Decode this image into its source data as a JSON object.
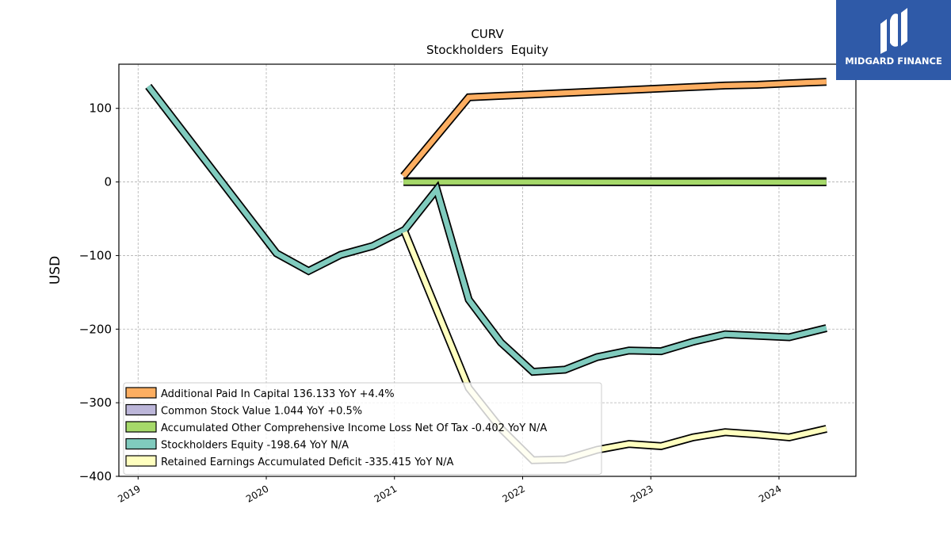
{
  "brand": {
    "name": "MIDGARD FINANCE",
    "bg_color": "#2f5aa8"
  },
  "chart_data": {
    "type": "line",
    "title": "CURV",
    "subtitle": "Stockholders  Equity",
    "ylabel": "USD",
    "xlabel": "",
    "ylim": [
      -400,
      160
    ],
    "xlim": [
      2018.85,
      2024.6
    ],
    "yticks": [
      -400,
      -300,
      -200,
      -100,
      0,
      100
    ],
    "xticks": [
      "2019",
      "2020",
      "2021",
      "2022",
      "2023",
      "2024"
    ],
    "grid": true,
    "legend_position": "lower-left",
    "series": [
      {
        "name": "Additional Paid In Capital  136.133 YoY +4.4%",
        "color": "#fdae61",
        "x": [
          2021.07,
          2021.58,
          2021.83,
          2022.08,
          2022.33,
          2022.58,
          2022.83,
          2023.08,
          2023.33,
          2023.58,
          2023.83,
          2024.08,
          2024.37
        ],
        "y": [
          8,
          115,
          117,
          119,
          121,
          123,
          125,
          127,
          129,
          131,
          132,
          134,
          136.133
        ]
      },
      {
        "name": "Common Stock Value  1.044 YoY +0.5%",
        "color": "#bcb6d9",
        "x": [
          2021.07,
          2021.58,
          2022.08,
          2022.58,
          2023.08,
          2023.58,
          2024.08,
          2024.37
        ],
        "y": [
          1.0,
          1.02,
          1.03,
          1.03,
          1.04,
          1.04,
          1.04,
          1.044
        ]
      },
      {
        "name": "Accumulated Other Comprehensive Income Loss Net Of Tax  -0.402 YoY N/A",
        "color": "#a6d96a",
        "x": [
          2021.07,
          2021.58,
          2022.08,
          2022.58,
          2023.08,
          2023.58,
          2024.08,
          2024.37
        ],
        "y": [
          0,
          0,
          0,
          -0.1,
          -0.3,
          -0.2,
          -0.4,
          -0.402
        ]
      },
      {
        "name": "Stockholders Equity  -198.64 YoY N/A",
        "color": "#80cbbe",
        "x": [
          2019.08,
          2020.08,
          2020.33,
          2020.58,
          2020.83,
          2021.08,
          2021.33,
          2021.58,
          2021.83,
          2022.08,
          2022.33,
          2022.58,
          2022.83,
          2023.08,
          2023.33,
          2023.58,
          2023.83,
          2024.08,
          2024.37
        ],
        "y": [
          130,
          -97,
          -121,
          -99,
          -87,
          -65,
          -10,
          -160,
          -218,
          -258,
          -255,
          -238,
          -229,
          -230,
          -217,
          -207,
          -209,
          -211,
          -198.64
        ]
      },
      {
        "name": "Retained Earnings Accumulated Deficit  -335.415 YoY N/A",
        "color": "#ffffbf",
        "x": [
          2021.08,
          2021.58,
          2021.83,
          2022.08,
          2022.33,
          2022.58,
          2022.83,
          2023.08,
          2023.33,
          2023.58,
          2023.83,
          2024.08,
          2024.37
        ],
        "y": [
          -68,
          -280,
          -335,
          -378,
          -377,
          -364,
          -356,
          -359,
          -347,
          -340,
          -343,
          -347,
          -335.415
        ]
      }
    ]
  }
}
